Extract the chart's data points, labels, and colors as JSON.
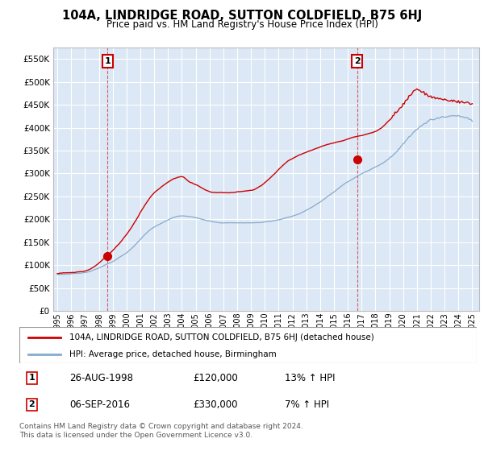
{
  "title": "104A, LINDRIDGE ROAD, SUTTON COLDFIELD, B75 6HJ",
  "subtitle": "Price paid vs. HM Land Registry's House Price Index (HPI)",
  "sale1_date": "26-AUG-1998",
  "sale1_price": 120000,
  "sale1_label": "1",
  "sale1_hpi_pct": "13% ↑ HPI",
  "sale2_date": "06-SEP-2016",
  "sale2_price": 330000,
  "sale2_label": "2",
  "sale2_hpi_pct": "7% ↑ HPI",
  "legend_line1": "104A, LINDRIDGE ROAD, SUTTON COLDFIELD, B75 6HJ (detached house)",
  "legend_line2": "HPI: Average price, detached house, Birmingham",
  "footer": "Contains HM Land Registry data © Crown copyright and database right 2024.\nThis data is licensed under the Open Government Licence v3.0.",
  "red_color": "#cc0000",
  "blue_color": "#88aacc",
  "bg_color": "#dce8f5",
  "grid_color": "#c8d8e8",
  "ylim": [
    0,
    575000
  ],
  "yticks": [
    0,
    50000,
    100000,
    150000,
    200000,
    250000,
    300000,
    350000,
    400000,
    450000,
    500000,
    550000
  ],
  "sale1_x": 1998.63,
  "sale2_x": 2016.67
}
